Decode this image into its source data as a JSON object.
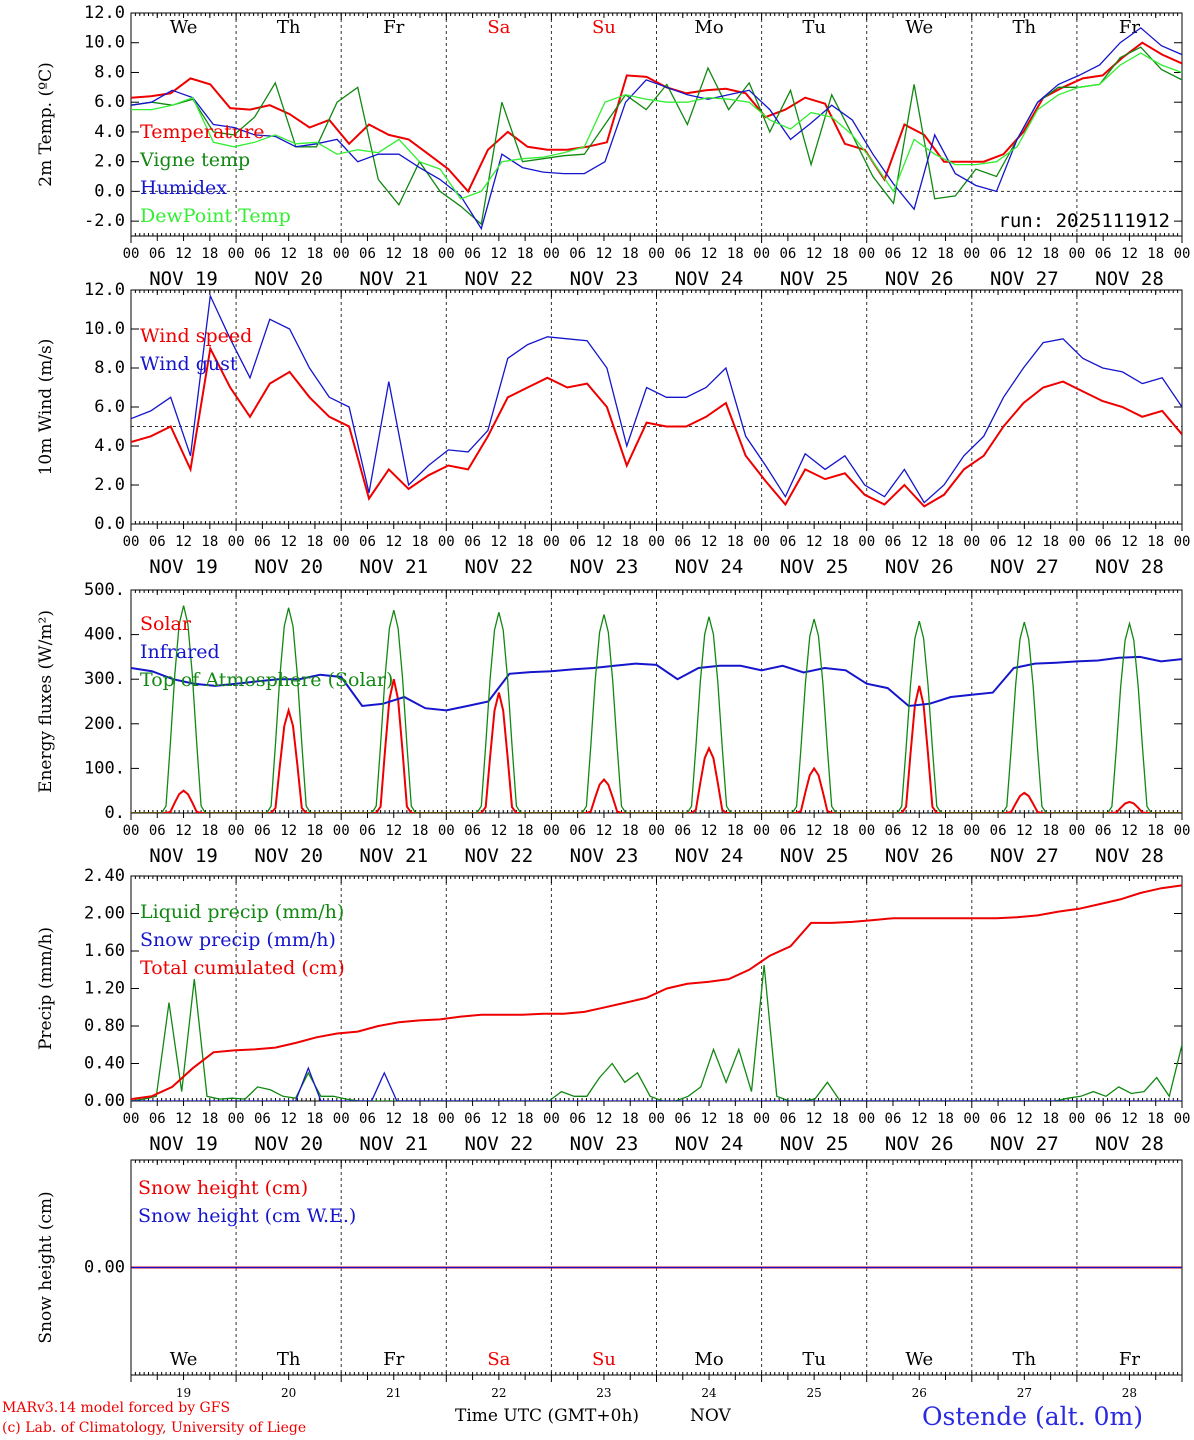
{
  "days": [
    {
      "abbr": "We",
      "weekend": false,
      "date": "NOV 19",
      "num": "19"
    },
    {
      "abbr": "Th",
      "weekend": false,
      "date": "NOV 20",
      "num": "20"
    },
    {
      "abbr": "Fr",
      "weekend": false,
      "date": "NOV 21",
      "num": "21"
    },
    {
      "abbr": "Sa",
      "weekend": true,
      "date": "NOV 22",
      "num": "22"
    },
    {
      "abbr": "Su",
      "weekend": true,
      "date": "NOV 23",
      "num": "23"
    },
    {
      "abbr": "Mo",
      "weekend": false,
      "date": "NOV 24",
      "num": "24"
    },
    {
      "abbr": "Tu",
      "weekend": false,
      "date": "NOV 25",
      "num": "25"
    },
    {
      "abbr": "We",
      "weekend": false,
      "date": "NOV 26",
      "num": "26"
    },
    {
      "abbr": "Th",
      "weekend": false,
      "date": "NOV 27",
      "num": "27"
    },
    {
      "abbr": "Fr",
      "weekend": false,
      "date": "NOV 28",
      "num": "28"
    }
  ],
  "hour_labels": [
    "00",
    "06",
    "12",
    "18"
  ],
  "colors": {
    "red": "#ee0000",
    "green": "#118811",
    "blue": "#1515cc",
    "light_green": "#33ee33",
    "weekend": "#ee0000"
  },
  "footer": {
    "model": "MARv3.14 model forced by GFS",
    "copyright": "(c) Lab. of Climatology, University of Liege",
    "axis_title": "Time UTC (GMT+0h)",
    "month": "NOV",
    "station": "Ostende (alt. 0m)"
  },
  "chart_data": [
    {
      "id": "temp",
      "type": "line",
      "ylabel": "2m Temp. (ºC)",
      "ylim": [
        -3,
        12
      ],
      "yticks": [
        "-2.0",
        "0.0",
        "2.0",
        "4.0",
        "6.0",
        "8.0",
        "10.0",
        "12.0"
      ],
      "ytick_values": [
        -2,
        0,
        2,
        4,
        6,
        8,
        10,
        12
      ],
      "ref_line": 0,
      "annotation": "run: 2025111912",
      "x_step_hours": 6,
      "series": [
        {
          "name": "Temperature",
          "color": "red",
          "values": [
            6.3,
            6.4,
            6.6,
            7.6,
            7.2,
            5.6,
            5.5,
            5.8,
            5.2,
            4.3,
            4.8,
            3.2,
            4.5,
            3.8,
            3.5,
            2.5,
            1.5,
            0.0,
            2.8,
            4.0,
            3.0,
            2.8,
            2.8,
            3.0,
            3.3,
            7.8,
            7.7,
            7.0,
            6.6,
            6.8,
            6.9,
            6.6,
            5.0,
            5.5,
            6.3,
            5.9,
            3.2,
            2.8,
            0.8,
            4.5,
            3.8,
            2.0,
            2.0,
            2.0,
            2.5,
            4.0,
            6.3,
            7.0,
            7.6,
            7.8,
            9.0,
            10.0,
            9.2,
            8.6
          ]
        },
        {
          "name": "Vigne temp",
          "color": "green",
          "values": [
            5.8,
            6.0,
            5.8,
            6.2,
            4.0,
            3.8,
            5.0,
            7.3,
            3.0,
            3.0,
            6.0,
            7.0,
            0.8,
            -0.9,
            2.0,
            0.0,
            -1.0,
            -2.2,
            6.0,
            2.0,
            2.2,
            2.4,
            2.5,
            4.5,
            6.5,
            5.5,
            7.2,
            4.5,
            8.3,
            5.5,
            7.3,
            4.0,
            6.8,
            1.8,
            6.5,
            3.8,
            1.0,
            -0.8,
            7.2,
            -0.5,
            -0.3,
            1.5,
            1.0,
            3.5,
            6.0,
            7.0,
            7.0,
            7.2,
            9.0,
            9.7,
            8.2,
            7.5
          ]
        },
        {
          "name": "Humidex",
          "color": "blue",
          "values": [
            5.8,
            6.0,
            6.8,
            6.3,
            4.5,
            4.3,
            3.8,
            3.7,
            3.0,
            3.2,
            3.5,
            2.0,
            2.5,
            2.5,
            1.6,
            0.8,
            -0.3,
            -2.5,
            2.5,
            1.6,
            1.3,
            1.2,
            1.2,
            2.0,
            6.0,
            7.5,
            7.0,
            6.5,
            6.2,
            6.5,
            6.8,
            5.5,
            3.5,
            4.6,
            5.8,
            4.8,
            2.5,
            0.5,
            -1.2,
            3.8,
            1.2,
            0.4,
            0.0,
            3.5,
            6.0,
            7.2,
            7.8,
            8.5,
            10.0,
            11.0,
            9.8,
            9.2
          ]
        },
        {
          "name": "DewPoint Temp",
          "color": "light_green",
          "values": [
            5.5,
            5.5,
            5.8,
            6.3,
            3.3,
            3.0,
            3.3,
            3.8,
            3.2,
            3.3,
            2.5,
            2.8,
            2.6,
            3.5,
            2.0,
            1.5,
            -0.5,
            0.0,
            2.0,
            2.2,
            2.3,
            2.6,
            3.0,
            6.0,
            6.5,
            6.2,
            6.0,
            6.0,
            6.3,
            6.2,
            6.0,
            4.8,
            4.2,
            5.3,
            5.0,
            3.8,
            2.0,
            0.0,
            3.5,
            2.5,
            1.8,
            1.8,
            2.0,
            3.0,
            5.5,
            6.5,
            7.0,
            7.2,
            8.5,
            9.3,
            8.5,
            8.0
          ]
        }
      ]
    },
    {
      "id": "wind",
      "type": "line",
      "ylabel": "10m Wind (m/s)",
      "ylim": [
        0,
        12
      ],
      "yticks": [
        "0.0",
        "2.0",
        "4.0",
        "6.0",
        "8.0",
        "10.0",
        "12.0"
      ],
      "ytick_values": [
        0,
        2,
        4,
        6,
        8,
        10,
        12
      ],
      "ref_line": 5,
      "x_step_hours": 6,
      "series": [
        {
          "name": "Wind speed",
          "color": "red",
          "values": [
            4.2,
            4.5,
            5.0,
            2.8,
            9.0,
            7.0,
            5.5,
            7.2,
            7.8,
            6.5,
            5.5,
            5.0,
            1.3,
            2.8,
            1.8,
            2.5,
            3.0,
            2.8,
            4.5,
            6.5,
            7.0,
            7.5,
            7.0,
            7.2,
            6.0,
            3.0,
            5.2,
            5.0,
            5.0,
            5.5,
            6.2,
            3.5,
            2.2,
            1.0,
            2.8,
            2.3,
            2.6,
            1.5,
            1.0,
            2.0,
            0.9,
            1.5,
            2.8,
            3.5,
            5.0,
            6.2,
            7.0,
            7.3,
            6.8,
            6.3,
            6.0,
            5.5,
            5.8,
            4.6
          ]
        },
        {
          "name": "Wind gust",
          "color": "blue",
          "values": [
            5.4,
            5.8,
            6.5,
            3.5,
            11.7,
            9.5,
            7.5,
            10.5,
            10.0,
            8.0,
            6.5,
            6.0,
            1.6,
            7.3,
            2.0,
            3.0,
            3.8,
            3.7,
            4.8,
            8.5,
            9.2,
            9.6,
            9.5,
            9.4,
            8.0,
            4.0,
            7.0,
            6.5,
            6.5,
            7.0,
            8.0,
            4.5,
            3.0,
            1.4,
            3.6,
            2.8,
            3.5,
            2.0,
            1.4,
            2.8,
            1.1,
            2.0,
            3.5,
            4.5,
            6.5,
            8.0,
            9.3,
            9.5,
            8.5,
            8.0,
            7.8,
            7.2,
            7.5,
            6.0
          ]
        }
      ]
    },
    {
      "id": "flux",
      "type": "line",
      "ylabel": "Energy fluxes (W/m²)",
      "ylim": [
        0,
        500
      ],
      "yticks": [
        "0.",
        "100.",
        "200.",
        "300.",
        "400.",
        "500."
      ],
      "ytick_values": [
        0,
        100,
        200,
        300,
        400,
        500
      ],
      "x_step_hours": 1,
      "series": [
        {
          "name": "Solar",
          "color": "red",
          "daily_peaks": [
            50,
            230,
            300,
            270,
            75,
            145,
            100,
            285,
            45,
            25
          ]
        },
        {
          "name": "Infrared",
          "color": "blue",
          "values": [
            325,
            318,
            300,
            290,
            285,
            290,
            295,
            300,
            300,
            310,
            305,
            240,
            245,
            260,
            235,
            230,
            240,
            250,
            312,
            316,
            318,
            322,
            325,
            330,
            335,
            332,
            300,
            325,
            330,
            330,
            320,
            330,
            315,
            325,
            320,
            290,
            280,
            240,
            245,
            260,
            265,
            270,
            325,
            335,
            337,
            340,
            342,
            348,
            350,
            340,
            345
          ]
        },
        {
          "name": "Top of Atmosphere (Solar)",
          "color": "green",
          "daily_peaks": [
            465,
            460,
            455,
            450,
            445,
            440,
            435,
            430,
            428,
            425
          ]
        }
      ]
    },
    {
      "id": "precip",
      "type": "line",
      "ylabel": "Precip (mm/h)",
      "ylim": [
        0,
        2.4
      ],
      "yticks": [
        "0.00",
        "0.40",
        "0.80",
        "1.20",
        "1.60",
        "2.00",
        "2.40"
      ],
      "ytick_values": [
        0,
        0.4,
        0.8,
        1.2,
        1.6,
        2.0,
        2.4
      ],
      "x_step_hours": 3,
      "series": [
        {
          "name": "Liquid precip (mm/h)",
          "color": "green",
          "values": [
            0,
            0.02,
            0.05,
            1.05,
            0.1,
            1.3,
            0.05,
            0.02,
            0.03,
            0.02,
            0.15,
            0.12,
            0.05,
            0.03,
            0.3,
            0.05,
            0.05,
            0.02,
            0,
            0,
            0,
            0,
            0,
            0,
            0,
            0,
            0,
            0,
            0,
            0,
            0,
            0,
            0,
            0,
            0.1,
            0.05,
            0.05,
            0.25,
            0.4,
            0.2,
            0.3,
            0.05,
            0,
            0,
            0.05,
            0.15,
            0.55,
            0.2,
            0.55,
            0.1,
            1.45,
            0.05,
            0,
            0,
            0.02,
            0.2,
            0,
            0,
            0,
            0,
            0,
            0,
            0,
            0,
            0,
            0,
            0,
            0,
            0,
            0,
            0,
            0,
            0,
            0,
            0.03,
            0.05,
            0.1,
            0.05,
            0.15,
            0.08,
            0.1,
            0.25,
            0.05,
            0.6
          ]
        },
        {
          "name": "Snow precip (mm/h)",
          "color": "blue",
          "values": [
            0,
            0,
            0,
            0,
            0,
            0,
            0,
            0,
            0,
            0,
            0,
            0,
            0,
            0,
            0.35,
            0,
            0,
            0,
            0,
            0,
            0.3,
            0,
            0,
            0,
            0,
            0,
            0,
            0,
            0,
            0,
            0,
            0,
            0,
            0,
            0,
            0,
            0,
            0,
            0,
            0,
            0,
            0,
            0,
            0,
            0,
            0,
            0,
            0,
            0,
            0,
            0,
            0,
            0,
            0,
            0,
            0,
            0,
            0,
            0,
            0,
            0,
            0,
            0,
            0,
            0,
            0,
            0,
            0,
            0,
            0,
            0,
            0,
            0,
            0,
            0,
            0,
            0,
            0,
            0,
            0,
            0,
            0,
            0,
            0
          ]
        },
        {
          "name": "Total cumulated (cm)",
          "color": "red",
          "values": [
            0.02,
            0.05,
            0.15,
            0.35,
            0.52,
            0.54,
            0.55,
            0.57,
            0.62,
            0.68,
            0.72,
            0.74,
            0.8,
            0.84,
            0.86,
            0.87,
            0.9,
            0.92,
            0.92,
            0.92,
            0.93,
            0.93,
            0.95,
            1.0,
            1.05,
            1.1,
            1.2,
            1.25,
            1.27,
            1.3,
            1.4,
            1.55,
            1.65,
            1.9,
            1.9,
            1.91,
            1.93,
            1.95,
            1.95,
            1.95,
            1.95,
            1.95,
            1.95,
            1.96,
            1.98,
            2.02,
            2.05,
            2.1,
            2.15,
            2.22,
            2.27,
            2.3
          ]
        }
      ]
    },
    {
      "id": "snow",
      "type": "line",
      "ylabel": "Snow height (cm)",
      "ylim": [
        -1,
        1
      ],
      "yticks": [
        "0.00"
      ],
      "ytick_values": [
        0
      ],
      "x_step_hours": 6,
      "series": [
        {
          "name": "Snow height (cm)",
          "color": "red",
          "values": [
            0,
            0
          ]
        },
        {
          "name": "Snow height (cm W.E.)",
          "color": "blue",
          "values": [
            0,
            0
          ]
        }
      ]
    }
  ]
}
